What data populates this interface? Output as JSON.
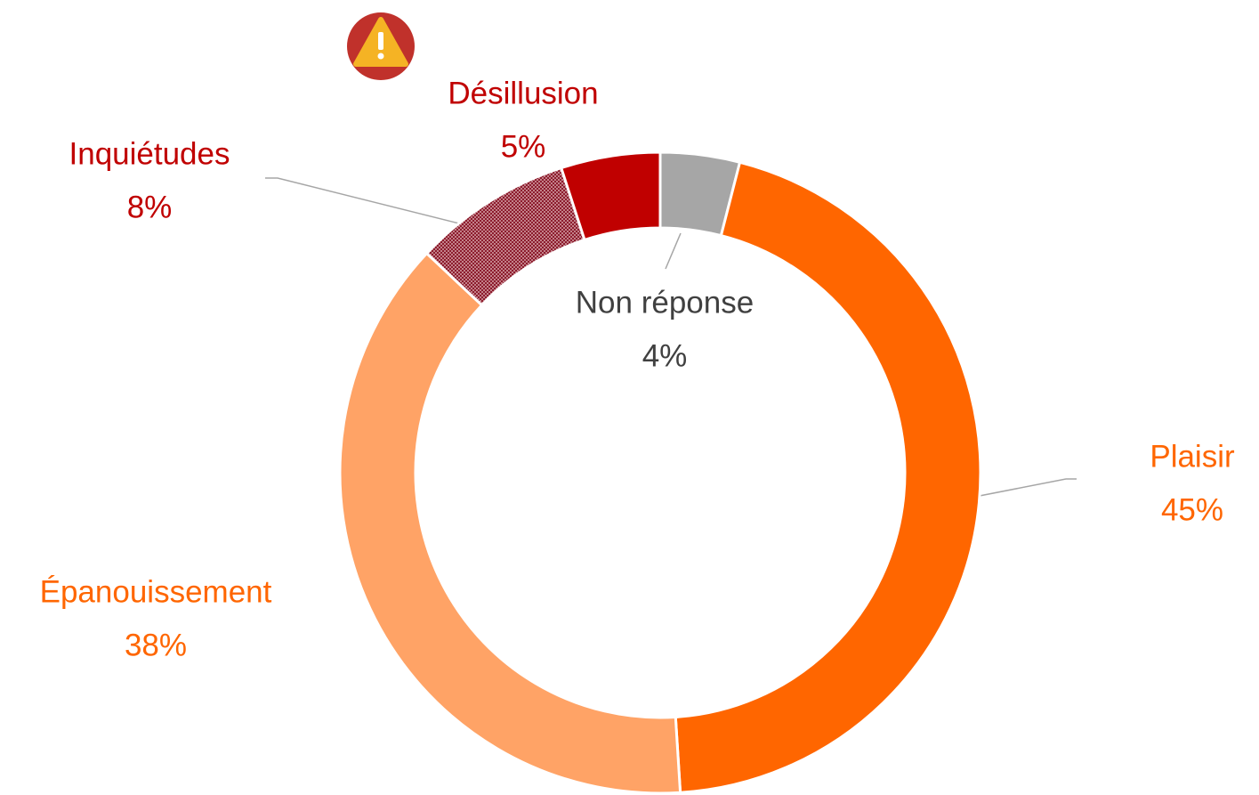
{
  "chart_data": {
    "type": "donut",
    "categories": [
      "Non réponse",
      "Plaisir",
      "Épanouissement",
      "Inquiétudes",
      "Désillusion"
    ],
    "values": [
      4,
      45,
      38,
      8,
      5
    ],
    "value_labels": [
      "4%",
      "45%",
      "38%",
      "8%",
      "5%"
    ],
    "colors": [
      "#a6a6a6",
      "#ff6600",
      "#ffa366",
      "#8b1a2b",
      "#c00000"
    ],
    "label_colors": [
      "#404040",
      "#ff6600",
      "#ff6600",
      "#c00000",
      "#c00000"
    ],
    "hatched": [
      false,
      false,
      false,
      true,
      false
    ]
  }
}
